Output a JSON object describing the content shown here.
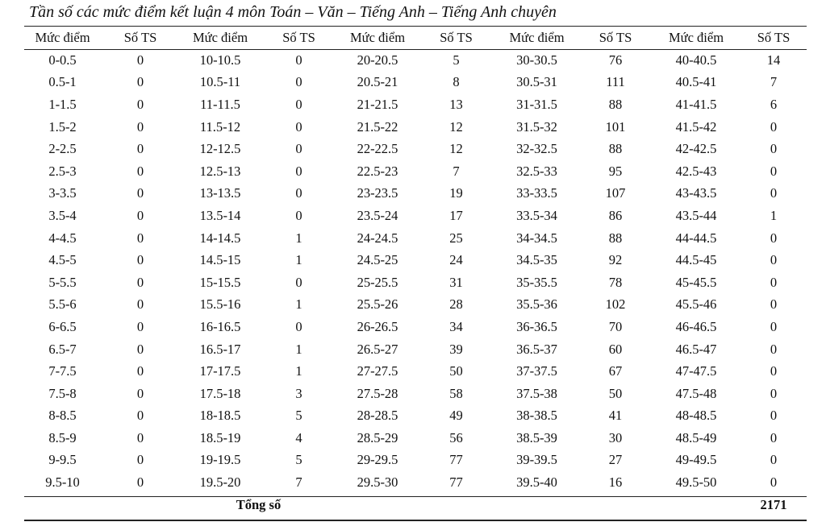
{
  "title": "Tần số các mức điểm kết luận 4 môn Toán – Văn – Tiếng Anh – Tiếng Anh chuyên",
  "columns": [
    "Mức điểm",
    "Số TS",
    "Mức điểm",
    "Số TS",
    "Mức điểm",
    "Số TS",
    "Mức điểm",
    "Số TS",
    "Mức điểm",
    "Số TS"
  ],
  "rows": [
    [
      "0-0.5",
      "0",
      "10-10.5",
      "0",
      "20-20.5",
      "5",
      "30-30.5",
      "76",
      "40-40.5",
      "14"
    ],
    [
      "0.5-1",
      "0",
      "10.5-11",
      "0",
      "20.5-21",
      "8",
      "30.5-31",
      "111",
      "40.5-41",
      "7"
    ],
    [
      "1-1.5",
      "0",
      "11-11.5",
      "0",
      "21-21.5",
      "13",
      "31-31.5",
      "88",
      "41-41.5",
      "6"
    ],
    [
      "1.5-2",
      "0",
      "11.5-12",
      "0",
      "21.5-22",
      "12",
      "31.5-32",
      "101",
      "41.5-42",
      "0"
    ],
    [
      "2-2.5",
      "0",
      "12-12.5",
      "0",
      "22-22.5",
      "12",
      "32-32.5",
      "88",
      "42-42.5",
      "0"
    ],
    [
      "2.5-3",
      "0",
      "12.5-13",
      "0",
      "22.5-23",
      "7",
      "32.5-33",
      "95",
      "42.5-43",
      "0"
    ],
    [
      "3-3.5",
      "0",
      "13-13.5",
      "0",
      "23-23.5",
      "19",
      "33-33.5",
      "107",
      "43-43.5",
      "0"
    ],
    [
      "3.5-4",
      "0",
      "13.5-14",
      "0",
      "23.5-24",
      "17",
      "33.5-34",
      "86",
      "43.5-44",
      "1"
    ],
    [
      "4-4.5",
      "0",
      "14-14.5",
      "1",
      "24-24.5",
      "25",
      "34-34.5",
      "88",
      "44-44.5",
      "0"
    ],
    [
      "4.5-5",
      "0",
      "14.5-15",
      "1",
      "24.5-25",
      "24",
      "34.5-35",
      "92",
      "44.5-45",
      "0"
    ],
    [
      "5-5.5",
      "0",
      "15-15.5",
      "0",
      "25-25.5",
      "31",
      "35-35.5",
      "78",
      "45-45.5",
      "0"
    ],
    [
      "5.5-6",
      "0",
      "15.5-16",
      "1",
      "25.5-26",
      "28",
      "35.5-36",
      "102",
      "45.5-46",
      "0"
    ],
    [
      "6-6.5",
      "0",
      "16-16.5",
      "0",
      "26-26.5",
      "34",
      "36-36.5",
      "70",
      "46-46.5",
      "0"
    ],
    [
      "6.5-7",
      "0",
      "16.5-17",
      "1",
      "26.5-27",
      "39",
      "36.5-37",
      "60",
      "46.5-47",
      "0"
    ],
    [
      "7-7.5",
      "0",
      "17-17.5",
      "1",
      "27-27.5",
      "50",
      "37-37.5",
      "67",
      "47-47.5",
      "0"
    ],
    [
      "7.5-8",
      "0",
      "17.5-18",
      "3",
      "27.5-28",
      "58",
      "37.5-38",
      "50",
      "47.5-48",
      "0"
    ],
    [
      "8-8.5",
      "0",
      "18-18.5",
      "5",
      "28-28.5",
      "49",
      "38-38.5",
      "41",
      "48-48.5",
      "0"
    ],
    [
      "8.5-9",
      "0",
      "18.5-19",
      "4",
      "28.5-29",
      "56",
      "38.5-39",
      "30",
      "48.5-49",
      "0"
    ],
    [
      "9-9.5",
      "0",
      "19-19.5",
      "5",
      "29-29.5",
      "77",
      "39-39.5",
      "27",
      "49-49.5",
      "0"
    ],
    [
      "9.5-10",
      "0",
      "19.5-20",
      "7",
      "29.5-30",
      "77",
      "39.5-40",
      "16",
      "49.5-50",
      "0"
    ]
  ],
  "total": {
    "label": "Tổng số",
    "value": "2171"
  }
}
